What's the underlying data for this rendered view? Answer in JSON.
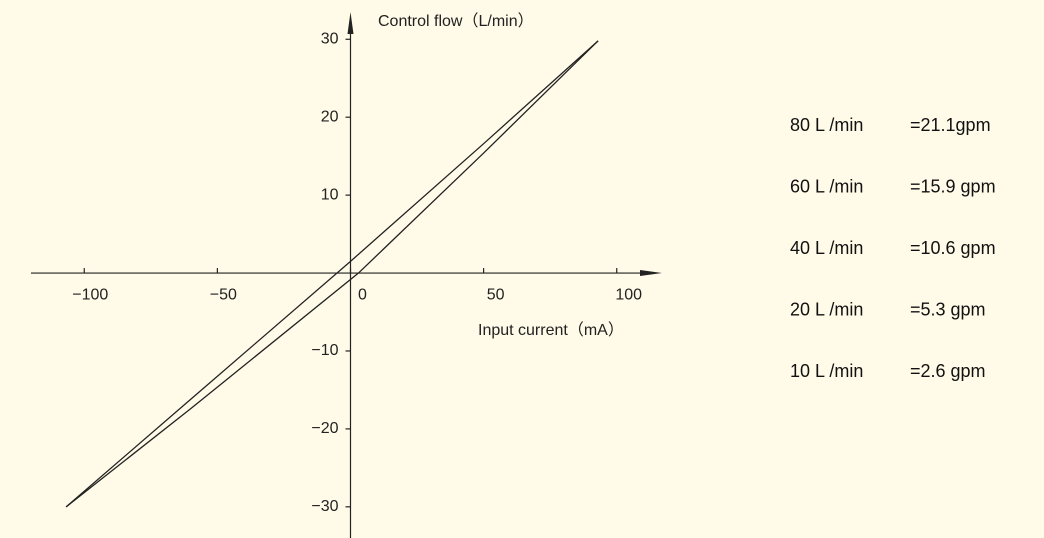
{
  "chart_data": {
    "type": "line",
    "y_axis_label": "Control flow（L/min）",
    "x_axis_label": "Input current（mA）",
    "xlim": [
      -120,
      117
    ],
    "ylim": [
      -34,
      33.5
    ],
    "xticks": [
      {
        "value": -100,
        "label": "−100"
      },
      {
        "value": -50,
        "label": "−50"
      },
      0,
      50,
      100
    ],
    "yticks": [
      30,
      20,
      10,
      {
        "value": -10,
        "label": "−10"
      },
      {
        "value": -20,
        "label": "−20"
      },
      {
        "value": -30,
        "label": "−30"
      }
    ],
    "color": "#222222",
    "series": [
      {
        "x": [
          -106.8,
          -60,
          0,
          50,
          93
        ],
        "values": [
          -30,
          -16.2,
          1.5,
          16.6,
          29.8
        ]
      },
      {
        "x": [
          -106.8,
          -60,
          3,
          50,
          93
        ],
        "values": [
          -30,
          -17.4,
          0,
          15.4,
          29.8
        ]
      }
    ]
  },
  "conversion_table": {
    "rows": [
      [
        "80 L /min",
        "=21.1gpm"
      ],
      [
        "60 L /min",
        "=15.9 gpm"
      ],
      [
        "40 L /min",
        "=10.6 gpm"
      ],
      [
        "20 L /min",
        "=5.3 gpm"
      ],
      [
        "10 L /min",
        "=2.6 gpm"
      ]
    ]
  }
}
